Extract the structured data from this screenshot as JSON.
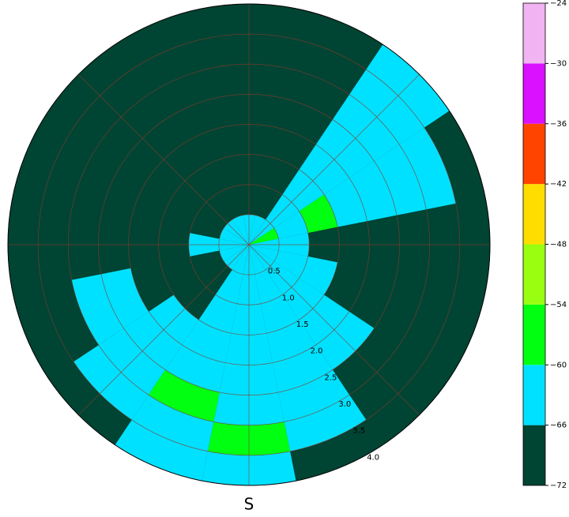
{
  "chart_data": {
    "type": "polar-heatmap",
    "direction_label": "S",
    "azimuth_edges": [
      -11.25,
      11.25,
      33.75,
      56.25,
      78.75,
      101.25,
      123.75,
      146.25,
      168.75,
      191.25,
      213.75,
      236.25,
      258.75,
      281.25,
      303.75,
      326.25,
      348.75
    ],
    "range_edges": [
      0,
      0.5,
      1,
      1.5,
      2,
      2.5,
      3,
      3.5,
      4
    ],
    "values": [
      [
        -63,
        -69,
        -69,
        -69,
        -69,
        -69,
        -69,
        -69
      ],
      [
        -63,
        -69,
        -69,
        -69,
        -69,
        -69,
        -69,
        -69
      ],
      [
        -63,
        -63,
        -63,
        -63,
        -63,
        -63,
        -63,
        -63
      ],
      [
        -57,
        -63,
        -57,
        -63,
        -63,
        -63,
        -63,
        -69
      ],
      [
        -63,
        -63,
        -69,
        -69,
        -69,
        -69,
        -69,
        -69
      ],
      [
        -63,
        -63,
        -63,
        -69,
        -69,
        -69,
        -69,
        -69
      ],
      [
        -63,
        -63,
        -63,
        -63,
        -63,
        -69,
        -69,
        -69
      ],
      [
        -63,
        -63,
        -63,
        -63,
        -63,
        -63,
        -63,
        -69
      ],
      [
        -63,
        -63,
        -63,
        -63,
        -63,
        -63,
        -57,
        -63
      ],
      [
        -63,
        -63,
        -63,
        -63,
        -63,
        -57,
        -63,
        -63
      ],
      [
        -63,
        -69,
        -69,
        -63,
        -63,
        -63,
        -63,
        -69
      ],
      [
        -63,
        -69,
        -69,
        -69,
        -63,
        -63,
        -69,
        -69
      ],
      [
        -63,
        -63,
        -69,
        -69,
        -69,
        -69,
        -69,
        -69
      ],
      [
        -63,
        -69,
        -69,
        -69,
        -69,
        -69,
        -69,
        -69
      ],
      [
        -63,
        -69,
        -69,
        -69,
        -69,
        -69,
        -69,
        -69
      ],
      [
        -63,
        -69,
        -69,
        -69,
        -69,
        -69,
        -69,
        -69
      ]
    ],
    "rlim": [
      0,
      4
    ],
    "rticks": [
      {
        "value": 0.5,
        "label": "0.5"
      },
      {
        "value": 1,
        "label": "1.0"
      },
      {
        "value": 1.5,
        "label": "1.5"
      },
      {
        "value": 2,
        "label": "2.0"
      },
      {
        "value": 2.5,
        "label": "2.5"
      },
      {
        "value": 3,
        "label": "3.0"
      },
      {
        "value": 3.5,
        "label": "3.5"
      },
      {
        "value": 4,
        "label": "4.0"
      }
    ],
    "thetagrids": [
      0,
      45,
      90,
      135,
      180,
      225,
      270,
      315
    ],
    "grid": true,
    "grid_color": "#8a3b2b",
    "colorbar": {
      "bounds": [
        {
          "value": -72,
          "label": "−72"
        },
        {
          "value": -66,
          "label": "−66"
        },
        {
          "value": -60,
          "label": "−60"
        },
        {
          "value": -54,
          "label": "−54"
        },
        {
          "value": -48,
          "label": "−48"
        },
        {
          "value": -42,
          "label": "−42"
        },
        {
          "value": -36,
          "label": "−36"
        },
        {
          "value": -30,
          "label": "−30"
        },
        {
          "value": -24,
          "label": "−24"
        }
      ],
      "colors": [
        "#004433",
        "#00e1ff",
        "#00ff10",
        "#99ff11",
        "#ffdd00",
        "#ff4400",
        "#d911ff",
        "#f1b3f1"
      ]
    }
  }
}
